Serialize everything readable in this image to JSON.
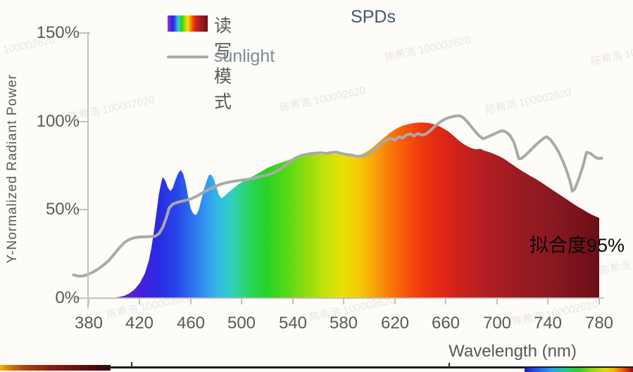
{
  "title": "SPDs",
  "legend": {
    "items": [
      {
        "label": "读写模式",
        "swatch": "spectrum-gradient"
      },
      {
        "label": "sunlight",
        "swatch": "gray-line"
      }
    ]
  },
  "axes": {
    "y": {
      "title": "Y-Normalized Radiant Power",
      "ticks": [
        "150%",
        "100%",
        "50%",
        "0%"
      ]
    },
    "x": {
      "title": "Wavelength (nm)",
      "ticks": [
        "380",
        "420",
        "460",
        "500",
        "540",
        "580",
        "620",
        "660",
        "700",
        "740",
        "780"
      ]
    }
  },
  "annotation": {
    "fit_label": "拟合度95%"
  },
  "watermark": {
    "text": "陈希浩 100002620"
  },
  "colors": {
    "background": "#fdfcf9",
    "axis": "#c4c1be",
    "tick_label": "#595959",
    "chart_title": "#47566b",
    "legend_label": "#595959",
    "sunlight_label": "#7d8b99",
    "sunlight_line": "#a9a9a9",
    "annotation": "#0a0a0a"
  },
  "bottom_strip": {
    "left_bar": [
      "#f2b312 0%",
      "#d97c0e 8%",
      "#b24110 22%",
      "#8f1d12 45%",
      "#6b1010 68%",
      "#4a0a0c 88%",
      "#33060a 100%"
    ],
    "line_color": "#1c1c1c",
    "rainbow_bar": [
      "#1a1aae 0%",
      "#2650e8 10%",
      "#28a0e8 25%",
      "#22c890 38%",
      "#35cc28 50%",
      "#90d414 62%",
      "#ddd90c 74%",
      "#f0b808 82%",
      "#e86808 90%",
      "#c82810 96%",
      "#8c1414 100%"
    ]
  },
  "chart_data": {
    "type": "area",
    "title": "SPDs",
    "xlabel": "Wavelength (nm)",
    "ylabel": "Y-Normalized Radiant Power",
    "xlim": [
      380,
      780
    ],
    "ylim": [
      0,
      150
    ],
    "x_ticks": [
      380,
      420,
      460,
      500,
      540,
      580,
      620,
      660,
      700,
      740,
      780
    ],
    "y_ticks_percent": [
      0,
      50,
      100,
      150
    ],
    "grid": false,
    "legend_position": "top-left",
    "annotation": {
      "text": "拟合度95%",
      "x_nm": 735,
      "y_percent": 32
    },
    "spectrum_gradient": [
      [
        380,
        "#8a40d0"
      ],
      [
        405,
        "#6a28c8"
      ],
      [
        420,
        "#4a1ed8"
      ],
      [
        435,
        "#2a2ae4"
      ],
      [
        450,
        "#2848ec"
      ],
      [
        465,
        "#2f80ee"
      ],
      [
        480,
        "#35b4ea"
      ],
      [
        492,
        "#30d0c0"
      ],
      [
        505,
        "#2ad464"
      ],
      [
        520,
        "#28d224"
      ],
      [
        535,
        "#55d816"
      ],
      [
        550,
        "#8edc10"
      ],
      [
        565,
        "#c2e20a"
      ],
      [
        578,
        "#e6e206"
      ],
      [
        590,
        "#f4ce06"
      ],
      [
        602,
        "#f8a907"
      ],
      [
        615,
        "#f87d08"
      ],
      [
        628,
        "#f55708"
      ],
      [
        640,
        "#ef3b0e"
      ],
      [
        652,
        "#e42a14"
      ],
      [
        665,
        "#d42319"
      ],
      [
        680,
        "#c02020"
      ],
      [
        695,
        "#ae1e22"
      ],
      [
        710,
        "#a01c22"
      ],
      [
        730,
        "#921a22"
      ],
      [
        750,
        "#84161f"
      ],
      [
        765,
        "#78121c"
      ],
      [
        780,
        "#6a0e18"
      ]
    ],
    "series": [
      {
        "name": "读写模式",
        "type": "area",
        "fill": "spectral-gradient",
        "points": [
          [
            380,
            0
          ],
          [
            398,
            0.2
          ],
          [
            404,
            0.7
          ],
          [
            408,
            1.4
          ],
          [
            412,
            2.8
          ],
          [
            416,
            5
          ],
          [
            420,
            8.5
          ],
          [
            424,
            14
          ],
          [
            427,
            21
          ],
          [
            429,
            28
          ],
          [
            431,
            37
          ],
          [
            433,
            48
          ],
          [
            435,
            59
          ],
          [
            437,
            66
          ],
          [
            438,
            68.5
          ],
          [
            440,
            66.5
          ],
          [
            442,
            62.5
          ],
          [
            444,
            60.5
          ],
          [
            446,
            62.5
          ],
          [
            448,
            67
          ],
          [
            450,
            70.5
          ],
          [
            452,
            72.5
          ],
          [
            454,
            70.5
          ],
          [
            456,
            65
          ],
          [
            458,
            57
          ],
          [
            460,
            50.5
          ],
          [
            462,
            47.8
          ],
          [
            464,
            47
          ],
          [
            466,
            49.5
          ],
          [
            468,
            55
          ],
          [
            470,
            61
          ],
          [
            472,
            65.5
          ],
          [
            474,
            69.5
          ],
          [
            476,
            70
          ],
          [
            478,
            67.5
          ],
          [
            480,
            63
          ],
          [
            482,
            58.5
          ],
          [
            484,
            56.5
          ],
          [
            486,
            57.5
          ],
          [
            489,
            59.5
          ],
          [
            493,
            62
          ],
          [
            497,
            64.3
          ],
          [
            501,
            66
          ],
          [
            506,
            68
          ],
          [
            511,
            70
          ],
          [
            516,
            72
          ],
          [
            521,
            74
          ],
          [
            526,
            75.5
          ],
          [
            531,
            76.8
          ],
          [
            536,
            78
          ],
          [
            541,
            79.5
          ],
          [
            546,
            80.5
          ],
          [
            551,
            81.2
          ],
          [
            556,
            81.5
          ],
          [
            561,
            81.3
          ],
          [
            566,
            81.5
          ],
          [
            571,
            81.7
          ],
          [
            576,
            81.5
          ],
          [
            581,
            81
          ],
          [
            586,
            80.5
          ],
          [
            590,
            80.3
          ],
          [
            594,
            81.5
          ],
          [
            598,
            83
          ],
          [
            602,
            85
          ],
          [
            606,
            87.5
          ],
          [
            610,
            90
          ],
          [
            614,
            92.3
          ],
          [
            618,
            94.5
          ],
          [
            622,
            96.3
          ],
          [
            626,
            97.6
          ],
          [
            630,
            98.4
          ],
          [
            634,
            99
          ],
          [
            638,
            99.3
          ],
          [
            642,
            99.4
          ],
          [
            646,
            99.1
          ],
          [
            650,
            98.5
          ],
          [
            654,
            97.5
          ],
          [
            658,
            96
          ],
          [
            662,
            94.2
          ],
          [
            666,
            91.8
          ],
          [
            670,
            89.2
          ],
          [
            674,
            87
          ],
          [
            678,
            85.5
          ],
          [
            681,
            84.6
          ],
          [
            684,
            84.2
          ],
          [
            687,
            84.5
          ],
          [
            690,
            83.4
          ],
          [
            694,
            82.6
          ],
          [
            698,
            81.5
          ],
          [
            702,
            80.2
          ],
          [
            706,
            78.6
          ],
          [
            710,
            76.6
          ],
          [
            714,
            74.6
          ],
          [
            718,
            72.6
          ],
          [
            722,
            70.9
          ],
          [
            726,
            69.2
          ],
          [
            730,
            67.6
          ],
          [
            734,
            65.8
          ],
          [
            738,
            63.8
          ],
          [
            742,
            61.9
          ],
          [
            746,
            60
          ],
          [
            750,
            58.1
          ],
          [
            754,
            56.2
          ],
          [
            758,
            54.2
          ],
          [
            762,
            52.3
          ],
          [
            766,
            50.6
          ],
          [
            770,
            48.9
          ],
          [
            774,
            47.3
          ],
          [
            777,
            46.3
          ],
          [
            780,
            45.4
          ]
        ]
      },
      {
        "name": "sunlight",
        "type": "line",
        "color": "#a9a9a9",
        "points": [
          [
            368,
            13.2
          ],
          [
            372,
            12.4
          ],
          [
            376,
            12.6
          ],
          [
            380,
            13.6
          ],
          [
            384,
            15
          ],
          [
            388,
            16.8
          ],
          [
            392,
            19
          ],
          [
            396,
            21.5
          ],
          [
            400,
            25
          ],
          [
            404,
            28.5
          ],
          [
            408,
            31.5
          ],
          [
            412,
            33.3
          ],
          [
            416,
            34.2
          ],
          [
            420,
            34.6
          ],
          [
            424,
            34.7
          ],
          [
            428,
            34.8
          ],
          [
            432,
            35
          ],
          [
            435,
            36.5
          ],
          [
            438,
            40
          ],
          [
            441,
            46
          ],
          [
            443,
            51
          ],
          [
            446,
            53.3
          ],
          [
            450,
            54.3
          ],
          [
            455,
            55.2
          ],
          [
            460,
            56.2
          ],
          [
            465,
            57.8
          ],
          [
            470,
            60
          ],
          [
            475,
            61.8
          ],
          [
            480,
            63.5
          ],
          [
            485,
            64.8
          ],
          [
            490,
            65.7
          ],
          [
            495,
            66.3
          ],
          [
            500,
            66.8
          ],
          [
            505,
            67.3
          ],
          [
            510,
            68
          ],
          [
            515,
            68.8
          ],
          [
            520,
            69.7
          ],
          [
            525,
            71
          ],
          [
            530,
            73
          ],
          [
            534,
            75
          ],
          [
            538,
            77.3
          ],
          [
            542,
            79.3
          ],
          [
            546,
            80.6
          ],
          [
            550,
            81.3
          ],
          [
            554,
            81.8
          ],
          [
            558,
            82.1
          ],
          [
            562,
            82.3
          ],
          [
            566,
            81.9
          ],
          [
            570,
            82.4
          ],
          [
            574,
            82.6
          ],
          [
            578,
            81.9
          ],
          [
            582,
            81.3
          ],
          [
            586,
            81
          ],
          [
            590,
            80.2
          ],
          [
            594,
            80.4
          ],
          [
            598,
            81.3
          ],
          [
            602,
            83
          ],
          [
            606,
            85.3
          ],
          [
            610,
            87.8
          ],
          [
            614,
            89.8
          ],
          [
            617,
            90.4
          ],
          [
            620,
            89.4
          ],
          [
            623,
            91.3
          ],
          [
            626,
            90.6
          ],
          [
            629,
            92.4
          ],
          [
            632,
            93
          ],
          [
            635,
            91.7
          ],
          [
            638,
            93.2
          ],
          [
            641,
            92.3
          ],
          [
            644,
            92.8
          ],
          [
            647,
            94.3
          ],
          [
            650,
            96.5
          ],
          [
            653,
            98.3
          ],
          [
            656,
            100
          ],
          [
            659,
            101.3
          ],
          [
            662,
            102.1
          ],
          [
            665,
            102.7
          ],
          [
            668,
            103.1
          ],
          [
            671,
            103.2
          ],
          [
            674,
            101.8
          ],
          [
            677,
            99.5
          ],
          [
            680,
            96.8
          ],
          [
            683,
            94.2
          ],
          [
            686,
            91.8
          ],
          [
            689,
            90.2
          ],
          [
            692,
            91
          ],
          [
            695,
            92
          ],
          [
            698,
            93
          ],
          [
            701,
            94
          ],
          [
            704,
            94.8
          ],
          [
            707,
            94
          ],
          [
            710,
            92.2
          ],
          [
            713,
            88.5
          ],
          [
            715,
            84
          ],
          [
            717,
            78.8
          ],
          [
            719,
            79
          ],
          [
            722,
            80.8
          ],
          [
            726,
            83.5
          ],
          [
            730,
            86.5
          ],
          [
            734,
            89
          ],
          [
            737,
            90.8
          ],
          [
            739,
            91.3
          ],
          [
            742,
            89.5
          ],
          [
            745,
            86.5
          ],
          [
            748,
            83
          ],
          [
            751,
            78.5
          ],
          [
            754,
            73
          ],
          [
            757,
            66.5
          ],
          [
            759,
            60.5
          ],
          [
            761,
            62
          ],
          [
            764,
            67.5
          ],
          [
            767,
            74
          ],
          [
            770,
            82.5
          ],
          [
            773,
            82
          ],
          [
            776,
            80.3
          ],
          [
            778,
            79.3
          ],
          [
            780,
            79
          ],
          [
            782,
            79.2
          ]
        ]
      }
    ]
  }
}
